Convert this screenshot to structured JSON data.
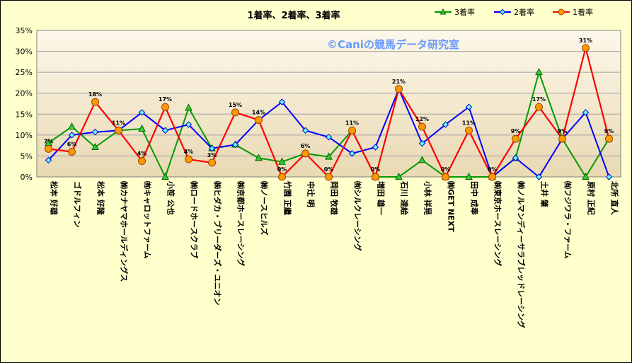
{
  "chart_data": {
    "type": "line",
    "title": "1着率、2着率、3着率",
    "watermark": "©Caniの競馬データ研究室",
    "categories": [
      "松本 好雄",
      "ゴドルフィン",
      "松本 好隆",
      "㈱カナヤマホールディングス",
      "㈲キャロットファーム",
      "小笹 公也",
      "㈱ロードホースクラブ",
      "㈱ヒダカ・ブリーダーズ・ユニオン",
      "㈱京都ホースレーシング",
      "㈱ノースヒルズ",
      "竹園 正繼",
      "中辻 明",
      "岡田 牧雄",
      "㈲シルクレーシング",
      "増田 雄一",
      "石川 達絵",
      "小林 祥晃",
      "㈱GET NEXT",
      "田中 成奉",
      "㈱東京ホースレーシング",
      "㈱ノルマンディーサラブレッドレーシング",
      "土井 肇",
      "㈲フジワラ・ファーム",
      "原村 正紀",
      "北所 直人"
    ],
    "ylim": [
      0,
      35
    ],
    "yticks": [
      "0%",
      "5%",
      "10%",
      "15%",
      "20%",
      "25%",
      "30%",
      "35%"
    ],
    "grid": "horizontal",
    "legend_position": "top-right",
    "series": [
      {
        "name": "3着率",
        "color": "#009900",
        "marker": "triangle",
        "values": [
          8.1,
          12.0,
          7.1,
          11.1,
          11.5,
          0.0,
          16.5,
          6.8,
          7.7,
          4.5,
          3.6,
          5.6,
          4.8,
          11.1,
          0.0,
          0.0,
          4.0,
          0.0,
          0.0,
          0.0,
          4.5,
          25.0,
          9.1,
          0.0,
          9.1
        ]
      },
      {
        "name": "2着率",
        "color": "#0000ff",
        "marker": "diamond",
        "values": [
          4.0,
          10.0,
          10.7,
          11.1,
          15.4,
          11.1,
          12.5,
          6.8,
          7.7,
          13.6,
          17.9,
          11.1,
          9.5,
          5.6,
          7.1,
          21.0,
          8.0,
          12.5,
          16.7,
          0.0,
          4.5,
          0.0,
          9.1,
          15.4,
          0.0
        ]
      },
      {
        "name": "1着率",
        "color": "#ff0000",
        "marker": "circle",
        "values": [
          6.7,
          6.0,
          17.9,
          11.1,
          3.8,
          16.7,
          4.2,
          3.4,
          15.4,
          13.6,
          0.0,
          5.6,
          0.0,
          11.1,
          0.0,
          21.0,
          12.0,
          0.0,
          11.1,
          0.0,
          9.1,
          16.7,
          9.1,
          30.8,
          9.1
        ],
        "labels": [
          "7%",
          "6%",
          "18%",
          "11%",
          "4%",
          "17%",
          "4%",
          "3%",
          "15%",
          "14%",
          "0%",
          "6%",
          "0%",
          "11%",
          "0%",
          "21%",
          "12%",
          "0%",
          "11%",
          "0%",
          "9%",
          "17%",
          "9%",
          "31%",
          "9%"
        ]
      }
    ]
  }
}
